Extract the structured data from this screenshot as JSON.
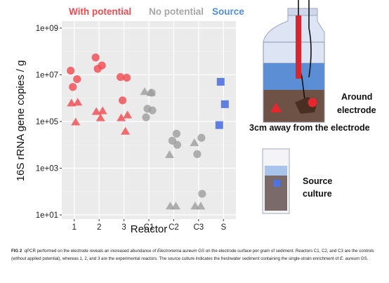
{
  "legend": {
    "with_potential": "With potential",
    "no_potential": "No potential",
    "source": "Source"
  },
  "colors": {
    "with_potential": "#f04a50",
    "no_potential": "#9e9e9e",
    "source": "#4f73e0",
    "panel_bg": "#ebebeb",
    "grid": "#ffffff"
  },
  "chart_data": {
    "type": "scatter",
    "xlabel": "Reactor",
    "ylabel": "16S rRNA gene copies / g",
    "yscale": "log",
    "ylim": [
      10,
      1000000000
    ],
    "categories": [
      "1",
      "2",
      "3",
      "C1",
      "C2",
      "C3",
      "S"
    ],
    "yticks": [
      {
        "value": 1000000000,
        "label": "1e+09"
      },
      {
        "value": 10000000,
        "label": "1e+07"
      },
      {
        "value": 100000,
        "label": "1e+05"
      },
      {
        "value": 1000,
        "label": "1e+03"
      },
      {
        "value": 10,
        "label": "1e+01"
      }
    ],
    "grid": true,
    "series": [
      {
        "group": "with_potential",
        "marker": "circle",
        "points": [
          {
            "x": "1",
            "y": 15000000
          },
          {
            "x": "1",
            "y": 6500000
          },
          {
            "x": "1",
            "y": 3000000
          },
          {
            "x": "2",
            "y": 55000000
          },
          {
            "x": "2",
            "y": 25000000
          },
          {
            "x": "2",
            "y": 18000000
          },
          {
            "x": "3",
            "y": 8000000
          },
          {
            "x": "3",
            "y": 7500000
          },
          {
            "x": "3",
            "y": 800000
          }
        ]
      },
      {
        "group": "with_potential",
        "marker": "triangle",
        "points": [
          {
            "x": "1",
            "y": 700000
          },
          {
            "x": "1",
            "y": 650000
          },
          {
            "x": "1",
            "y": 100000
          },
          {
            "x": "2",
            "y": 300000
          },
          {
            "x": "2",
            "y": 280000
          },
          {
            "x": "2",
            "y": 150000
          },
          {
            "x": "3",
            "y": 200000
          },
          {
            "x": "3",
            "y": 150000
          },
          {
            "x": "3",
            "y": 40000
          }
        ]
      },
      {
        "group": "no_potential",
        "marker": "triangle",
        "points": [
          {
            "x": "C1",
            "y": 2000000
          },
          {
            "x": "C1",
            "y": 1800000
          },
          {
            "x": "C2",
            "y": 4000
          },
          {
            "x": "C2",
            "y": 25
          },
          {
            "x": "C2",
            "y": 25
          },
          {
            "x": "C3",
            "y": 13000
          },
          {
            "x": "C3",
            "y": 25
          },
          {
            "x": "C3",
            "y": 25
          }
        ]
      },
      {
        "group": "no_potential",
        "marker": "circle",
        "points": [
          {
            "x": "C1",
            "y": 1700000
          },
          {
            "x": "C1",
            "y": 350000
          },
          {
            "x": "C1",
            "y": 300000
          },
          {
            "x": "C1",
            "y": 150000
          },
          {
            "x": "C2",
            "y": 30000
          },
          {
            "x": "C2",
            "y": 15000
          },
          {
            "x": "C2",
            "y": 10000
          },
          {
            "x": "C3",
            "y": 20000
          },
          {
            "x": "C3",
            "y": 4000
          },
          {
            "x": "C3",
            "y": 80
          }
        ]
      },
      {
        "group": "source",
        "marker": "square",
        "points": [
          {
            "x": "S",
            "y": 5000000
          },
          {
            "x": "S",
            "y": 550000
          },
          {
            "x": "S",
            "y": 70000
          }
        ]
      }
    ]
  },
  "diagram": {
    "label_around_1": "Around",
    "label_around_2": "electrode",
    "label_away": "3cm away from the electrode",
    "label_source_1": "Source",
    "label_source_2": "culture"
  },
  "caption": {
    "fig": "FIG 2",
    "t1": "qPCR performed on the electrode reveals an increased abundance of ",
    "t2": "Electronema aureum",
    "t3": " GS on the electrode surface per gram of sediment. Reactors C1, C2, and C3 are the controls (without applied potential), whereas 1, 2, and 3 are the experimental reactors. The source culture indicates the freshwater sediment containing the single-strain enrichment of ",
    "t4": "E. aureum",
    "t5": " GS."
  }
}
